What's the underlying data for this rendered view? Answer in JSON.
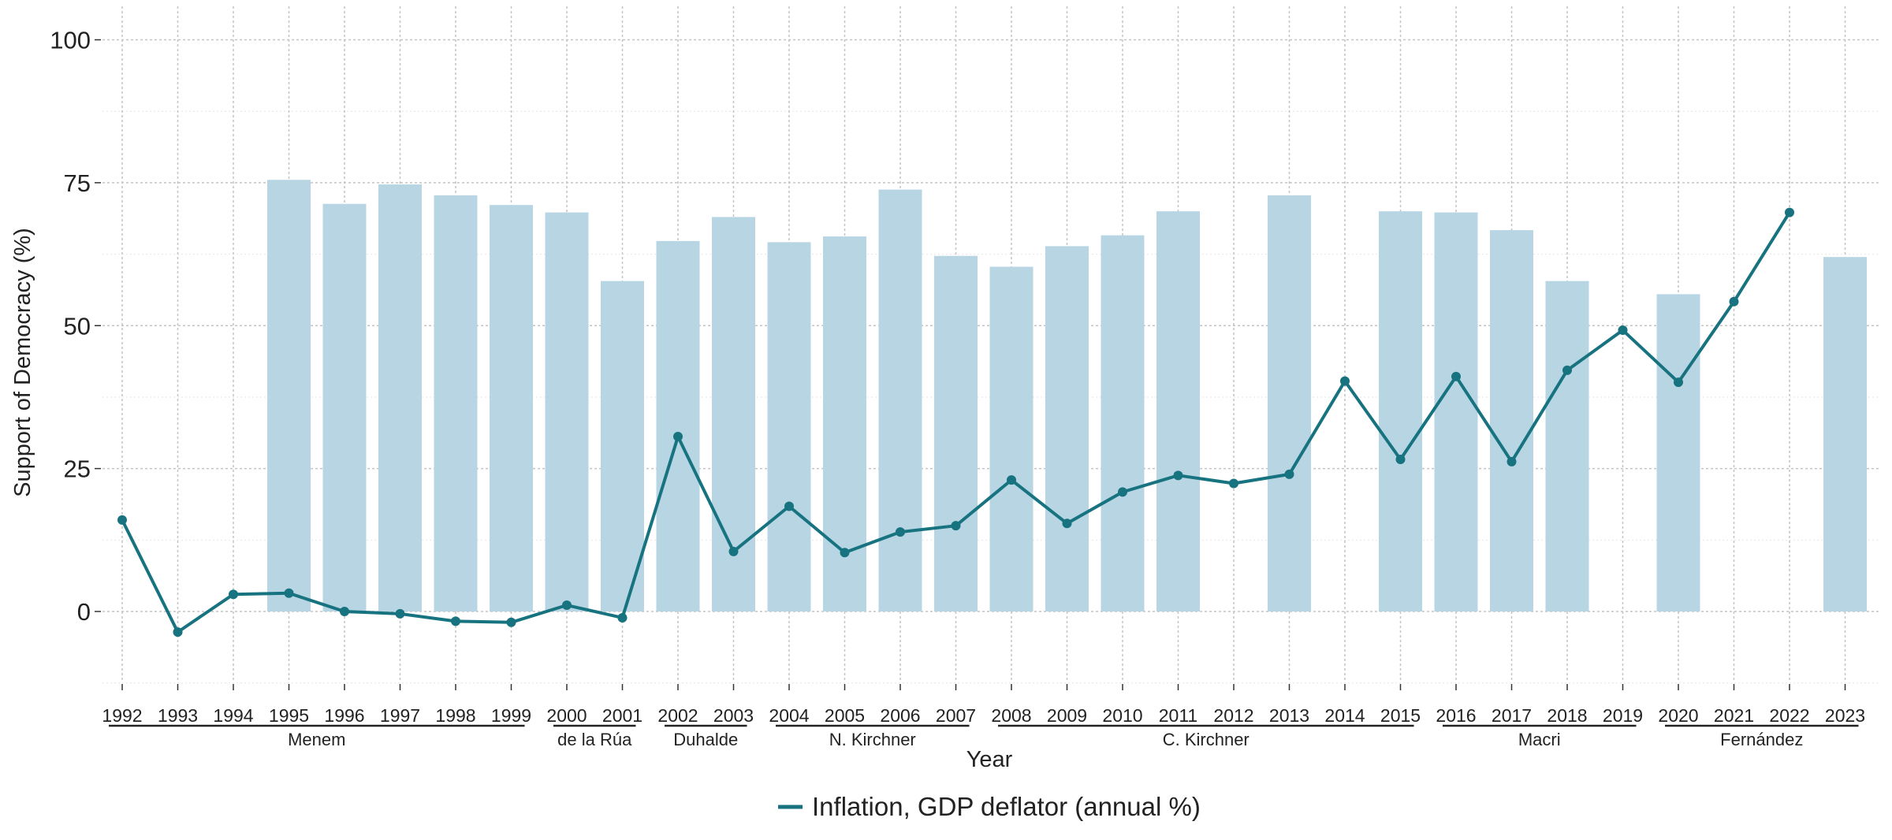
{
  "chart_data": {
    "type": "bar+line",
    "title": "",
    "xlabel": "Year",
    "ylabel": "Support of Democracy (%)",
    "ylim": [
      -13,
      104
    ],
    "yticks": [
      0,
      25,
      50,
      75,
      100
    ],
    "grid": true,
    "legend_position": "bottom",
    "categories": [
      "1992",
      "1993",
      "1994",
      "1995",
      "1996",
      "1997",
      "1998",
      "1999",
      "2000",
      "2001",
      "2002",
      "2003",
      "2004",
      "2005",
      "2006",
      "2007",
      "2008",
      "2009",
      "2010",
      "2011",
      "2012",
      "2013",
      "2014",
      "2015",
      "2016",
      "2017",
      "2018",
      "2019",
      "2020",
      "2021",
      "2022",
      "2023"
    ],
    "bars": {
      "color": "#b8d5e4",
      "values": [
        null,
        null,
        null,
        75.5,
        71.3,
        74.7,
        72.8,
        71.1,
        69.8,
        57.8,
        64.8,
        69.0,
        64.6,
        65.6,
        73.8,
        62.2,
        60.3,
        63.9,
        65.8,
        70.0,
        null,
        72.8,
        null,
        70.0,
        69.8,
        66.7,
        57.8,
        null,
        55.5,
        null,
        null,
        62.0
      ]
    },
    "series": [
      {
        "name": "Inflation, GDP deflator (annual %)",
        "color": "#17737f",
        "values": [
          16.0,
          -3.6,
          3.0,
          3.2,
          0.0,
          -0.4,
          -1.7,
          -1.9,
          1.1,
          -1.1,
          30.6,
          10.5,
          18.4,
          10.3,
          13.9,
          15.0,
          23.0,
          15.4,
          20.9,
          23.8,
          22.4,
          24.0,
          40.3,
          26.6,
          41.1,
          26.2,
          42.2,
          49.2,
          40.1,
          54.2,
          69.8,
          null
        ]
      }
    ],
    "presidents": [
      {
        "name": "Menem",
        "from": "1992",
        "to": "1999"
      },
      {
        "name": "de la Rúa",
        "from": "2000",
        "to": "2001"
      },
      {
        "name": "Duhalde",
        "from": "2002",
        "to": "2003"
      },
      {
        "name": "N. Kirchner",
        "from": "2004",
        "to": "2007"
      },
      {
        "name": "C. Kirchner",
        "from": "2008",
        "to": "2015"
      },
      {
        "name": "Macri",
        "from": "2016",
        "to": "2019"
      },
      {
        "name": "Fernández",
        "from": "2020",
        "to": "2023"
      }
    ]
  }
}
